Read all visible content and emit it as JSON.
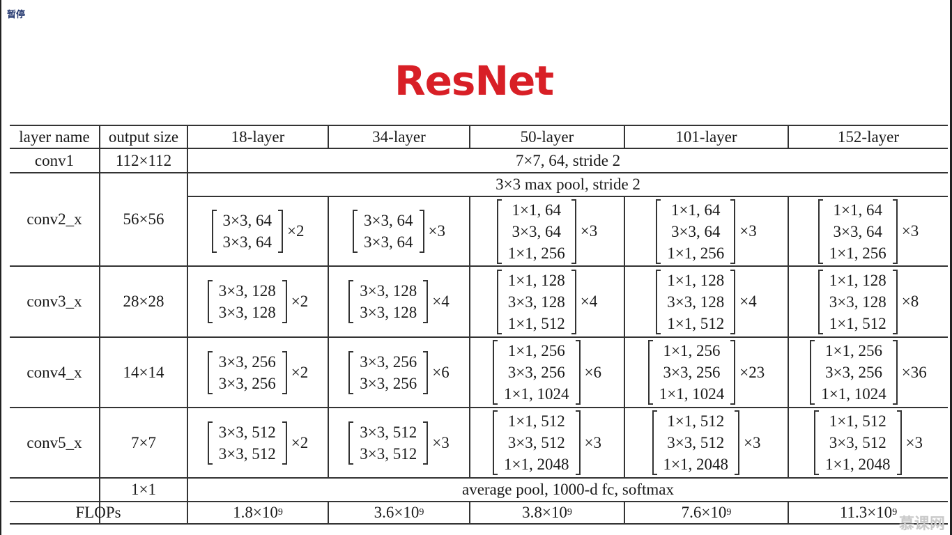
{
  "pause_label": "暂停",
  "title": "ResNet",
  "header": [
    "layer name",
    "output size",
    "18-layer",
    "34-layer",
    "50-layer",
    "101-layer",
    "152-layer"
  ],
  "conv1": {
    "name": "conv1",
    "size": "112×112",
    "spec": "7×7, 64, stride 2"
  },
  "conv2": {
    "name": "conv2_x",
    "size": "56×56",
    "pool": "3×3 max pool, stride 2",
    "cells": [
      {
        "lines": [
          "3×3, 64",
          "3×3, 64"
        ],
        "mult": "×2"
      },
      {
        "lines": [
          "3×3, 64",
          "3×3, 64"
        ],
        "mult": "×3"
      },
      {
        "lines": [
          "1×1, 64",
          "3×3, 64",
          "1×1, 256"
        ],
        "mult": "×3"
      },
      {
        "lines": [
          "1×1, 64",
          "3×3, 64",
          "1×1, 256"
        ],
        "mult": "×3"
      },
      {
        "lines": [
          "1×1, 64",
          "3×3, 64",
          "1×1, 256"
        ],
        "mult": "×3"
      }
    ]
  },
  "conv3": {
    "name": "conv3_x",
    "size": "28×28",
    "cells": [
      {
        "lines": [
          "3×3, 128",
          "3×3, 128"
        ],
        "mult": "×2"
      },
      {
        "lines": [
          "3×3, 128",
          "3×3, 128"
        ],
        "mult": "×4"
      },
      {
        "lines": [
          "1×1, 128",
          "3×3, 128",
          "1×1, 512"
        ],
        "mult": "×4"
      },
      {
        "lines": [
          "1×1, 128",
          "3×3, 128",
          "1×1, 512"
        ],
        "mult": "×4"
      },
      {
        "lines": [
          "1×1, 128",
          "3×3, 128",
          "1×1, 512"
        ],
        "mult": "×8"
      }
    ]
  },
  "conv4": {
    "name": "conv4_x",
    "size": "14×14",
    "cells": [
      {
        "lines": [
          "3×3, 256",
          "3×3, 256"
        ],
        "mult": "×2"
      },
      {
        "lines": [
          "3×3, 256",
          "3×3, 256"
        ],
        "mult": "×6"
      },
      {
        "lines": [
          "1×1, 256",
          "3×3, 256",
          "1×1, 1024"
        ],
        "mult": "×6"
      },
      {
        "lines": [
          "1×1, 256",
          "3×3, 256",
          "1×1, 1024"
        ],
        "mult": "×23"
      },
      {
        "lines": [
          "1×1, 256",
          "3×3, 256",
          "1×1, 1024"
        ],
        "mult": "×36"
      }
    ]
  },
  "conv5": {
    "name": "conv5_x",
    "size": "7×7",
    "cells": [
      {
        "lines": [
          "3×3, 512",
          "3×3, 512"
        ],
        "mult": "×2"
      },
      {
        "lines": [
          "3×3, 512",
          "3×3, 512"
        ],
        "mult": "×3"
      },
      {
        "lines": [
          "1×1, 512",
          "3×3, 512",
          "1×1, 2048"
        ],
        "mult": "×3"
      },
      {
        "lines": [
          "1×1, 512",
          "3×3, 512",
          "1×1, 2048"
        ],
        "mult": "×3"
      },
      {
        "lines": [
          "1×1, 512",
          "3×3, 512",
          "1×1, 2048"
        ],
        "mult": "×3"
      }
    ]
  },
  "final": {
    "size": "1×1",
    "spec": "average pool, 1000-d fc, softmax"
  },
  "flops": {
    "label": "FLOPs",
    "values": [
      {
        "mantissa": "1.8×10",
        "exp": "9"
      },
      {
        "mantissa": "3.6×10",
        "exp": "9"
      },
      {
        "mantissa": "3.8×10",
        "exp": "9"
      },
      {
        "mantissa": "7.6×10",
        "exp": "9"
      },
      {
        "mantissa": "11.3×10",
        "exp": "9"
      }
    ]
  },
  "watermark": "慕课网"
}
